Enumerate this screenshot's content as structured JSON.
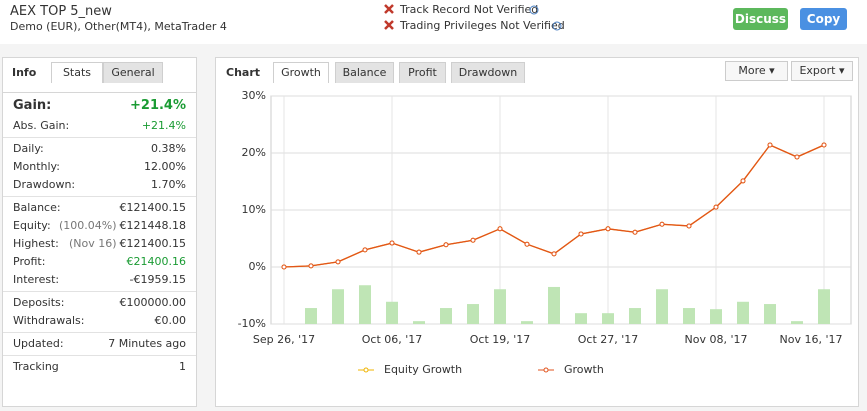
{
  "header": {
    "title": "AEX TOP 5_new",
    "subtitle": "Demo (EUR), Other(MT4), MetaTrader 4",
    "warnings": [
      "Track Record Not Verified",
      "Trading Privileges Not Verified"
    ],
    "buttons": [
      "Discuss",
      "Copy"
    ]
  },
  "info": {
    "tabs": [
      "Info",
      "Stats",
      "General"
    ],
    "groups": [
      [
        {
          "label": "Gain:",
          "value": "+21.4%",
          "color": "#1a9b33"
        },
        {
          "label": "Abs. Gain:",
          "value": "+21.4%",
          "color": "#1a9b33"
        }
      ],
      [
        {
          "label": "Daily:",
          "value": "0.38%"
        },
        {
          "label": "Monthly:",
          "value": "12.00%"
        },
        {
          "label": "Drawdown:",
          "value": "1.70%"
        }
      ],
      [
        {
          "label": "Balance:",
          "value": "€121400.15"
        },
        {
          "label": "Equity:",
          "note": "(100.04%)",
          "value": "€121448.18"
        },
        {
          "label": "Highest:",
          "note": "(Nov 16)",
          "value": "€121400.15"
        },
        {
          "label": "Profit:",
          "value": "€21400.16",
          "color": "#1a9b33"
        },
        {
          "label": "Interest:",
          "value": "-€1959.15"
        }
      ],
      [
        {
          "label": "Deposits:",
          "value": "€100000.00"
        },
        {
          "label": "Withdrawals:",
          "value": "€0.00"
        }
      ],
      [
        {
          "label": "Updated:",
          "value": "7 Minutes ago"
        }
      ],
      [
        {
          "label": "Tracking",
          "value": "1"
        }
      ]
    ]
  },
  "chart_panel": {
    "title": "Chart",
    "tabs": [
      "Growth",
      "Balance",
      "Profit",
      "Drawdown"
    ],
    "buttons": [
      "More",
      "Export"
    ]
  },
  "chart_data": {
    "type": "line",
    "categories": [
      "Sep 26, '17",
      null,
      null,
      null,
      "Oct 06, '17",
      null,
      null,
      null,
      "Oct 19, '17",
      null,
      null,
      null,
      "Oct 27, '17",
      null,
      null,
      null,
      "Nov 08, '17",
      null,
      null,
      null,
      "Nov 16, '17"
    ],
    "series": [
      {
        "name": "Equity Growth",
        "color": "#f0b400",
        "values": [
          0,
          0.2,
          0.9,
          3.0,
          4.2,
          2.6,
          3.9,
          4.7,
          6.7,
          4.0,
          2.3,
          5.8,
          6.7,
          6.1,
          7.5,
          7.2,
          10.5,
          15.1,
          21.4,
          19.3,
          21.4
        ]
      },
      {
        "name": "Growth",
        "color": "#e2531c",
        "values": [
          0,
          0.2,
          0.9,
          3.0,
          4.2,
          2.6,
          3.9,
          4.7,
          6.7,
          4.0,
          2.3,
          5.8,
          6.7,
          6.1,
          7.5,
          7.2,
          10.5,
          15.1,
          21.4,
          19.3,
          21.4
        ]
      },
      {
        "type": "bar",
        "color": "#bfe5b5",
        "values": [
          null,
          -7.2,
          -3.9,
          -3.2,
          -6.1,
          -9.5,
          -7.2,
          -6.5,
          -3.9,
          -9.5,
          -3.5,
          -8.1,
          -8.1,
          -7.2,
          -3.9,
          -7.2,
          -7.4,
          -6.1,
          -6.5,
          -9.5,
          -3.9
        ]
      }
    ],
    "ylim": [
      -10,
      30
    ],
    "yticks": [
      {
        "value": -10,
        "label": "-10%"
      },
      {
        "value": 0,
        "label": "0%"
      },
      {
        "value": 10,
        "label": "10%"
      },
      {
        "value": 20,
        "label": "20%"
      },
      {
        "value": 30,
        "label": "30%"
      }
    ],
    "grid": true
  }
}
